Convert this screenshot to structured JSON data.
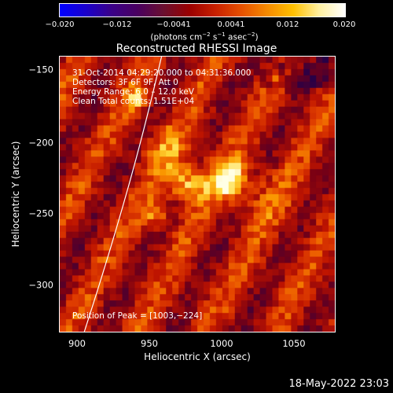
{
  "colorbar": {
    "ticks": [
      "−0.020",
      "−0.012",
      "−0.0041",
      "0.0041",
      "0.012",
      "0.020"
    ],
    "units_text": "(photons cm",
    "units_exp1": "−2",
    "units_mid": " s",
    "units_exp2": "−1",
    "units_mid2": " asec",
    "units_exp3": "−2",
    "units_end": ")",
    "colormap": [
      "#0000ff",
      "#1a00cc",
      "#3a0088",
      "#4a0060",
      "#6a1030",
      "#9a0000",
      "#c82000",
      "#e65000",
      "#f58a00",
      "#ffc000",
      "#fff0a0",
      "#ffffff"
    ]
  },
  "title": "Reconstructed RHESSI Image",
  "info": {
    "time_range": "31‑Oct‑2014 04:29:20.000 to 04:31:36.000",
    "detectors": "Detectors: 3F 6F 9F, Att 0",
    "energy_range": "Energy Range: 6.0 – 12.0 keV",
    "clean_counts": "Clean    Total counts: 1.51E+04",
    "peak": "Position of Peak = [1003,−224]"
  },
  "axes": {
    "x_label": "Heliocentric X (arcsec)",
    "y_label": "Heliocentric Y (arcsec)",
    "x_ticks": [
      "900",
      "950",
      "1000",
      "1050"
    ],
    "y_ticks": [
      "−150",
      "−200",
      "−250",
      "−300"
    ]
  },
  "image": {
    "peak_x": 1003,
    "peak_y": -224
  },
  "datestamp": "18‑May‑2022 23:03"
}
